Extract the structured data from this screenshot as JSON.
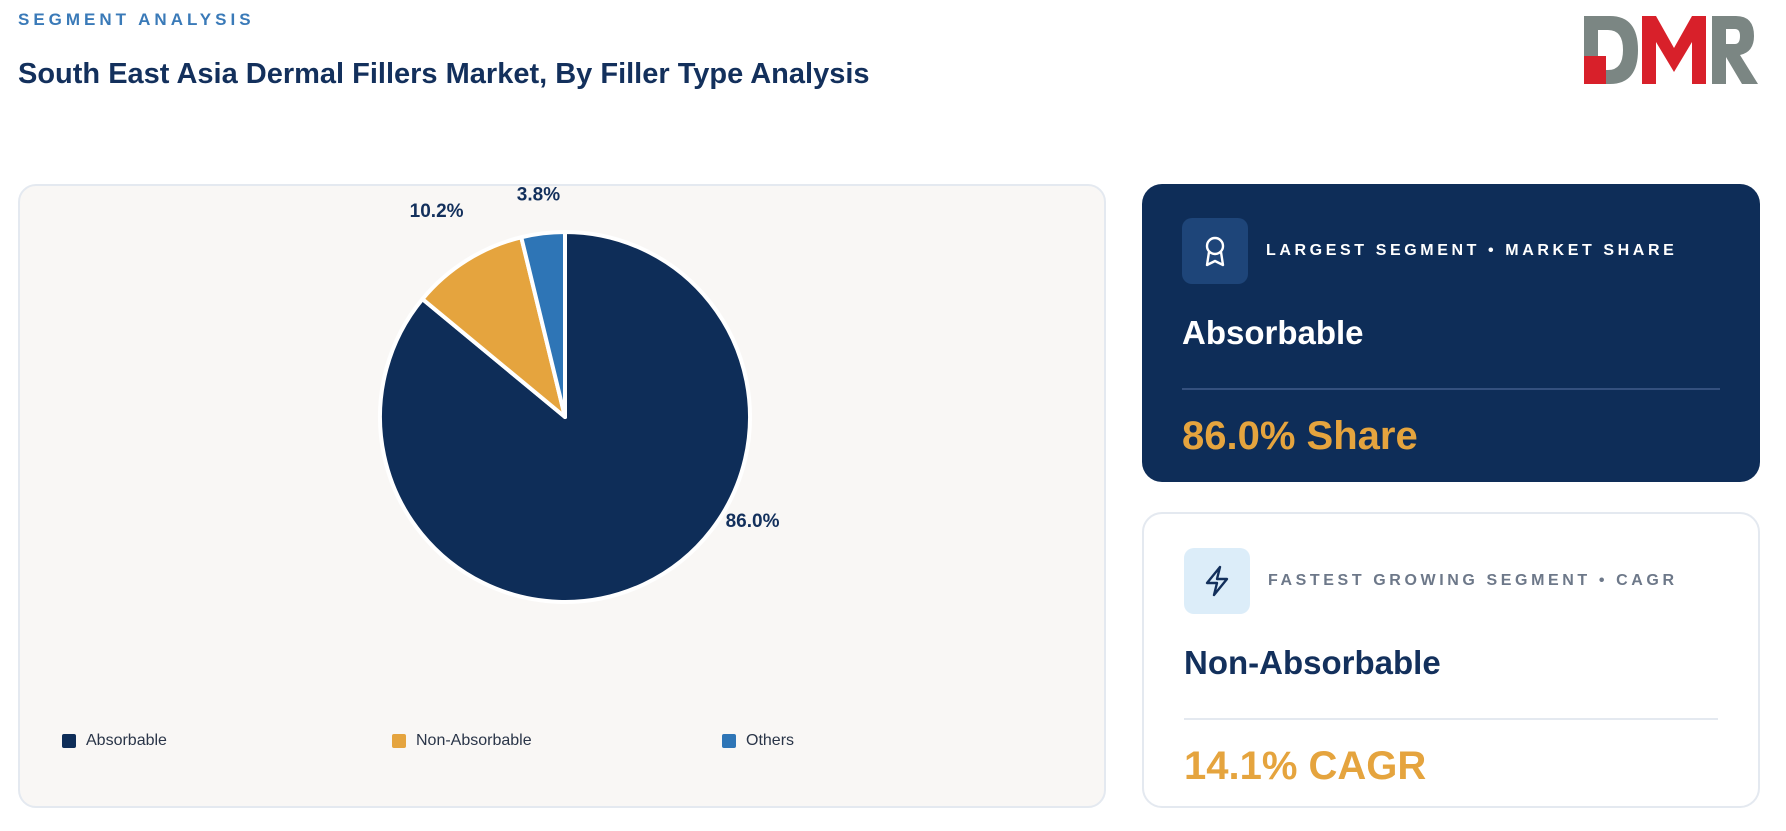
{
  "header": {
    "eyebrow": "SEGMENT ANALYSIS",
    "title": "South East Asia Dermal Fillers Market, By Filler Type Analysis"
  },
  "logo": {
    "text": "DMR",
    "colors": [
      "#d8202a",
      "#7b8683"
    ]
  },
  "chart_data": {
    "type": "pie",
    "categories": [
      "Absorbable",
      "Non-Absorbable",
      "Others"
    ],
    "values": [
      86.0,
      10.2,
      3.8
    ],
    "labels": [
      "86.0%",
      "10.2%",
      "3.8%"
    ],
    "colors": [
      "#0e2d58",
      "#e5a43e",
      "#2e75b6"
    ],
    "legend_position": "bottom",
    "title": ""
  },
  "cards": {
    "largest": {
      "label": "LARGEST SEGMENT • MARKET SHARE",
      "name": "Absorbable",
      "value": "86.0% Share",
      "icon": "award-icon"
    },
    "fastest": {
      "label": "FASTEST GROWING SEGMENT • CAGR",
      "name": "Non-Absorbable",
      "value": "14.1% CAGR",
      "icon": "lightning-icon"
    }
  }
}
